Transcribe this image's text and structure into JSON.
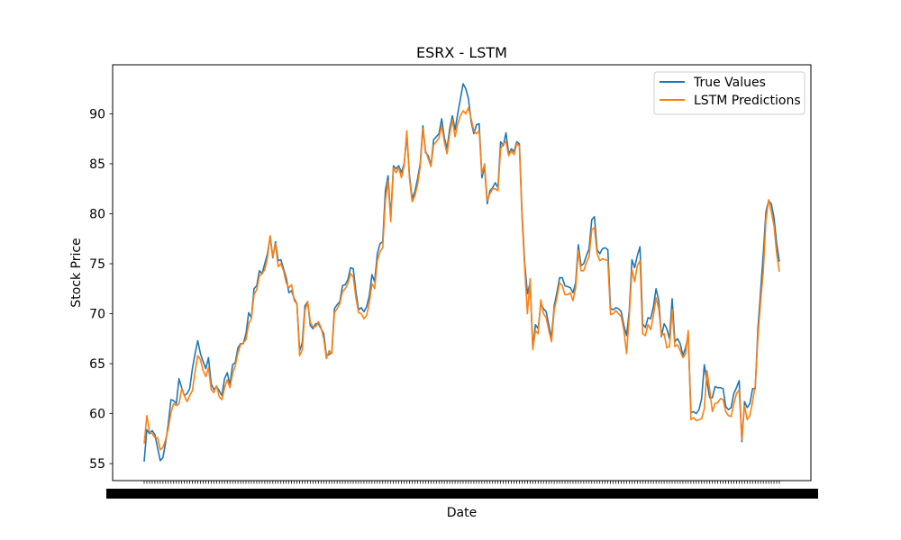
{
  "chart_data": {
    "type": "line",
    "title": "ESRX - LSTM",
    "xlabel": "Date",
    "ylabel": "Stock Price",
    "ylim": [
      53.3,
      94.9
    ],
    "yticks": [
      55,
      60,
      65,
      70,
      75,
      80,
      85,
      90
    ],
    "legend_position": "top-right",
    "grid": false,
    "series": [
      {
        "name": "True Values",
        "color": "#1f77b4",
        "values": [
          55.2,
          58.4,
          58.0,
          58.3,
          57.9,
          56.6,
          55.3,
          55.6,
          57.1,
          59.0,
          61.4,
          61.3,
          61.0,
          63.5,
          62.6,
          61.8,
          62.0,
          62.5,
          64.5,
          66.0,
          67.3,
          66.0,
          65.2,
          64.5,
          65.6,
          63.0,
          62.4,
          62.7,
          62.3,
          61.8,
          63.5,
          64.1,
          62.9,
          64.9,
          65.1,
          66.6,
          67.0,
          67.0,
          68.0,
          70.1,
          69.6,
          72.5,
          72.8,
          74.3,
          74.0,
          75.0,
          76.0,
          77.7,
          75.6,
          77.2,
          75.3,
          75.4,
          74.5,
          73.6,
          72.1,
          72.3,
          71.5,
          71.0,
          66.3,
          67.1,
          70.8,
          71.2,
          68.8,
          68.5,
          69.0,
          69.0,
          68.5,
          68.0,
          65.8,
          65.9,
          66.2,
          70.5,
          70.9,
          71.2,
          72.8,
          72.9,
          73.4,
          74.6,
          74.5,
          72.2,
          70.4,
          70.6,
          70.2,
          70.7,
          71.8,
          73.9,
          73.2,
          76.0,
          77.0,
          77.2,
          82.3,
          83.8,
          79.6,
          84.8,
          84.5,
          84.8,
          84.1,
          85.0,
          87.8,
          83.8,
          81.5,
          82.2,
          83.5,
          85.0,
          88.8,
          86.1,
          85.8,
          84.8,
          87.4,
          87.7,
          88.0,
          89.5,
          87.6,
          86.5,
          88.5,
          89.8,
          88.4,
          90.0,
          91.5,
          93.0,
          92.5,
          91.5,
          89.2,
          88.0,
          88.9,
          89.0,
          83.6,
          84.7,
          81.0,
          82.3,
          82.6,
          83.1,
          82.6,
          87.2,
          86.8,
          88.1,
          86.0,
          86.5,
          86.2,
          87.2,
          87.0,
          80.0,
          75.0,
          72.0,
          73.1,
          66.6,
          68.9,
          68.5,
          71.0,
          70.5,
          70.2,
          68.8,
          67.6,
          70.8,
          72.1,
          73.6,
          73.6,
          72.8,
          72.7,
          72.6,
          72.1,
          73.1,
          76.9,
          74.8,
          75.0,
          75.8,
          76.5,
          79.4,
          79.7,
          76.4,
          76.0,
          76.5,
          76.6,
          76.4,
          70.5,
          70.4,
          70.6,
          70.5,
          70.2,
          68.8,
          67.8,
          70.3,
          75.4,
          74.6,
          75.8,
          76.7,
          69.0,
          68.6,
          69.6,
          69.5,
          70.7,
          72.5,
          71.3,
          67.7,
          69.0,
          68.5,
          67.5,
          71.5,
          67.2,
          67.5,
          67.0,
          65.8,
          66.6,
          67.8,
          60.1,
          60.2,
          60.0,
          60.4,
          61.5,
          64.9,
          63.2,
          61.6,
          61.6,
          62.7,
          62.6,
          62.6,
          62.5,
          60.7,
          60.4,
          60.6,
          62.0,
          62.6,
          63.3,
          57.2,
          61.2,
          60.6,
          61.0,
          62.5,
          62.5,
          68.5,
          72.2,
          76.0,
          80.2,
          81.3,
          81.0,
          79.6,
          77.0,
          75.2
        ]
      },
      {
        "name": "LSTM Predictions",
        "color": "#ff7f0e",
        "values": [
          57.0,
          59.8,
          58.2,
          58.0,
          57.6,
          57.6,
          56.4,
          56.6,
          57.4,
          58.5,
          60.1,
          61.0,
          60.8,
          61.0,
          62.5,
          61.8,
          61.2,
          61.8,
          62.3,
          64.2,
          65.8,
          65.4,
          64.3,
          63.7,
          64.6,
          62.4,
          62.1,
          62.8,
          61.7,
          61.4,
          62.6,
          63.4,
          62.6,
          64.0,
          64.8,
          66.1,
          66.9,
          67.1,
          67.4,
          69.0,
          69.5,
          71.9,
          72.4,
          73.8,
          74.0,
          74.4,
          75.6,
          77.8,
          75.7,
          77.0,
          74.7,
          75.0,
          74.3,
          73.1,
          72.6,
          72.9,
          71.3,
          71.0,
          65.8,
          66.4,
          70.3,
          71.2,
          69.1,
          68.7,
          68.7,
          69.2,
          68.6,
          67.5,
          65.5,
          66.3,
          66.0,
          70.1,
          70.5,
          71.0,
          72.2,
          72.5,
          73.0,
          74.0,
          73.7,
          71.6,
          70.1,
          70.0,
          69.5,
          69.8,
          71.1,
          73.0,
          72.5,
          75.3,
          76.2,
          76.6,
          81.3,
          83.3,
          79.2,
          84.6,
          84.1,
          84.6,
          83.6,
          84.8,
          88.3,
          83.5,
          81.2,
          81.8,
          82.9,
          84.7,
          88.5,
          86.3,
          85.5,
          84.7,
          86.9,
          87.2,
          87.6,
          88.8,
          87.2,
          86.0,
          88.0,
          89.4,
          87.7,
          89.0,
          89.8,
          90.3,
          90.0,
          90.6,
          89.5,
          88.3,
          88.0,
          88.3,
          84.0,
          85.0,
          81.3,
          82.0,
          82.5,
          82.5,
          82.3,
          86.5,
          87.0,
          87.2,
          85.8,
          86.3,
          85.9,
          87.0,
          86.8,
          79.5,
          74.5,
          70.0,
          73.5,
          66.4,
          68.3,
          68.0,
          71.4,
          70.0,
          69.6,
          68.3,
          67.2,
          70.4,
          71.6,
          73.1,
          72.8,
          71.9,
          71.9,
          72.1,
          71.3,
          72.6,
          76.3,
          74.3,
          74.3,
          75.1,
          75.7,
          78.4,
          78.6,
          76.0,
          75.3,
          75.5,
          75.4,
          75.3,
          69.9,
          70.0,
          70.3,
          70.0,
          69.7,
          68.3,
          66.0,
          69.8,
          74.4,
          73.2,
          74.8,
          75.3,
          68.0,
          67.8,
          68.9,
          68.4,
          69.8,
          71.6,
          70.5,
          67.8,
          68.0,
          66.6,
          66.7,
          70.4,
          66.7,
          66.9,
          66.3,
          65.6,
          66.0,
          68.3,
          59.4,
          59.6,
          59.3,
          59.4,
          59.5,
          60.5,
          64.3,
          62.4,
          60.2,
          61.0,
          61.1,
          61.5,
          61.4,
          60.2,
          59.8,
          59.7,
          61.0,
          62.0,
          62.4,
          57.4,
          60.8,
          59.4,
          59.8,
          61.2,
          62.8,
          67.6,
          71.2,
          74.2,
          79.4,
          81.4,
          80.2,
          78.8,
          76.0,
          74.2
        ]
      }
    ]
  }
}
